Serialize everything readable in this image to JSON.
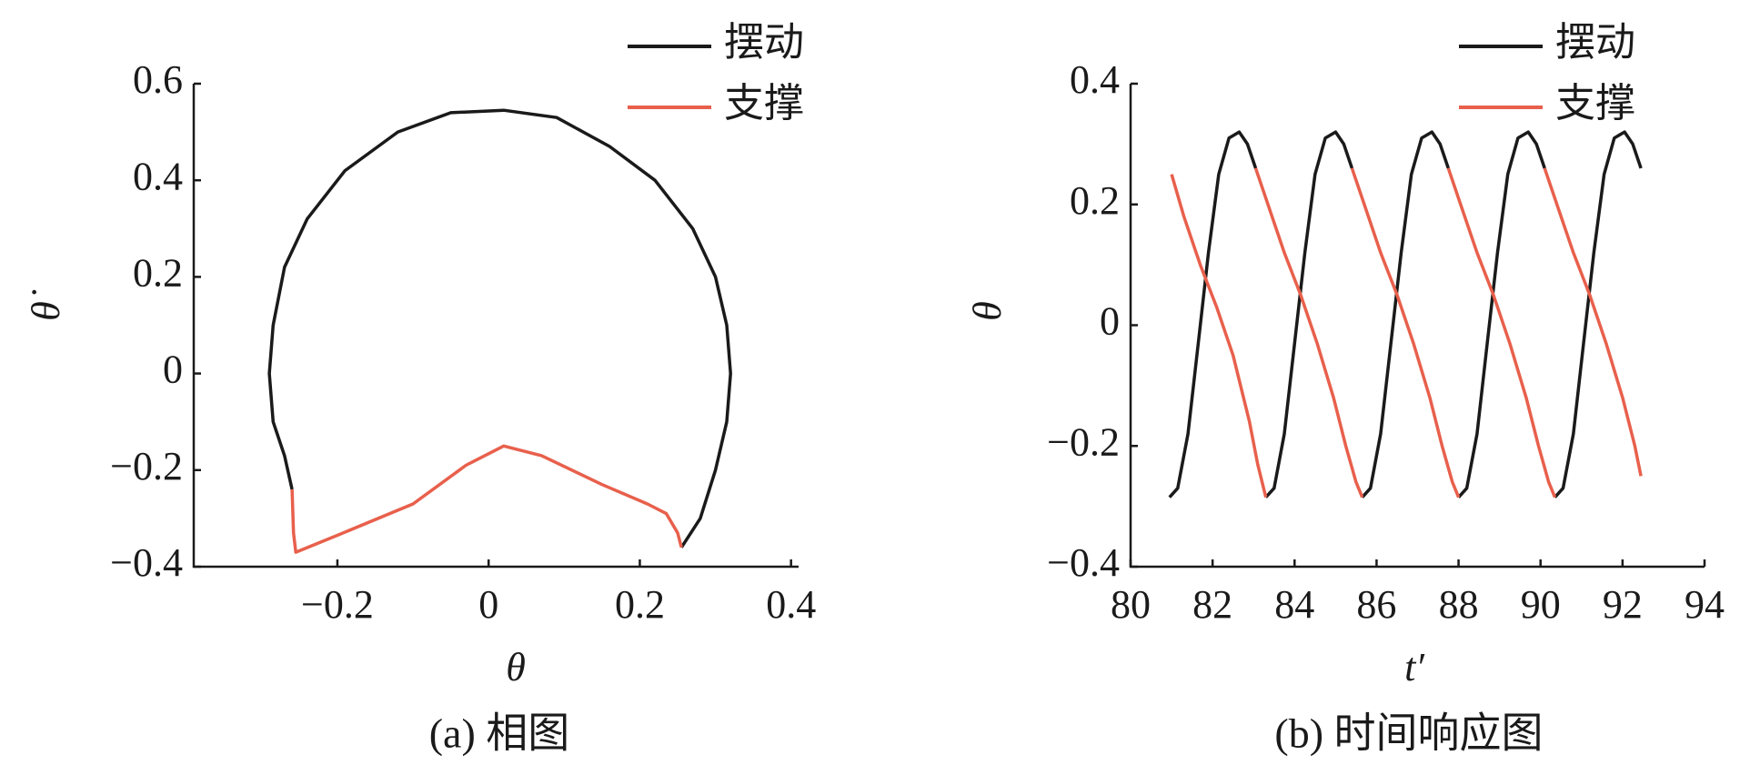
{
  "chart_data": [
    {
      "type": "line",
      "caption": "(a) 相图",
      "xlabel": "θ",
      "ylabel": "θ̇",
      "xlim": [
        -0.39,
        0.41
      ],
      "ylim": [
        -0.4,
        0.6
      ],
      "xticks": [
        {
          "value": -0.2,
          "label": "−0.2"
        },
        0,
        0.2,
        0.4
      ],
      "yticks": [
        0.6,
        0.4,
        0.2,
        0,
        {
          "value": -0.2,
          "label": "−0.2"
        },
        {
          "value": -0.4,
          "label": "−0.4"
        }
      ],
      "series": [
        {
          "name": "摆动",
          "color": "#1a1a1a",
          "x": [
            0.255,
            0.28,
            0.3,
            0.315,
            0.32,
            0.315,
            0.3,
            0.27,
            0.22,
            0.16,
            0.09,
            0.02,
            -0.05,
            -0.12,
            -0.19,
            -0.24,
            -0.27,
            -0.285,
            -0.29,
            -0.285,
            -0.27,
            -0.26
          ],
          "values": [
            -0.36,
            -0.3,
            -0.2,
            -0.1,
            0,
            0.1,
            0.2,
            0.3,
            0.4,
            0.47,
            0.53,
            0.545,
            0.54,
            0.5,
            0.42,
            0.32,
            0.22,
            0.1,
            0,
            -0.1,
            -0.17,
            -0.24
          ]
        },
        {
          "name": "支撑",
          "color": "#e8604c",
          "x": [
            -0.26,
            -0.258,
            -0.255,
            -0.2,
            -0.1,
            -0.03,
            0.02,
            0.07,
            0.15,
            0.21,
            0.235,
            0.25,
            0.255
          ],
          "values": [
            -0.24,
            -0.33,
            -0.37,
            -0.335,
            -0.27,
            -0.19,
            -0.15,
            -0.17,
            -0.23,
            -0.27,
            -0.29,
            -0.33,
            -0.36
          ]
        }
      ]
    },
    {
      "type": "line",
      "caption": "(b) 时间响应图",
      "xlabel": "t′",
      "ylabel": "θ",
      "xlim": [
        80,
        94
      ],
      "ylim": [
        -0.4,
        0.4
      ],
      "xticks": [
        80,
        82,
        84,
        86,
        88,
        90,
        92,
        94
      ],
      "yticks": [
        0.4,
        0.2,
        0,
        {
          "value": -0.2,
          "label": "−0.2"
        },
        {
          "value": -0.4,
          "label": "−0.4"
        }
      ],
      "series": [
        {
          "name": "摆动",
          "color": "#1a1a1a",
          "x": [
            80.95,
            81.15,
            81.4,
            81.65,
            81.9,
            82.15,
            82.4,
            82.65,
            82.85,
            83.05,
            null,
            83.3,
            83.5,
            83.75,
            84.0,
            84.25,
            84.5,
            84.75,
            85.0,
            85.2,
            85.4,
            null,
            85.65,
            85.85,
            86.1,
            86.35,
            86.6,
            86.85,
            87.1,
            87.35,
            87.55,
            87.75,
            null,
            88.0,
            88.2,
            88.45,
            88.7,
            88.95,
            89.2,
            89.45,
            89.7,
            89.9,
            90.1,
            null,
            90.35,
            90.55,
            90.8,
            91.05,
            91.3,
            91.55,
            91.8,
            92.05,
            92.25,
            92.45
          ],
          "values": [
            -0.285,
            -0.27,
            -0.18,
            -0.03,
            0.12,
            0.25,
            0.31,
            0.32,
            0.3,
            0.26,
            null,
            -0.285,
            -0.27,
            -0.18,
            -0.03,
            0.12,
            0.25,
            0.31,
            0.32,
            0.3,
            0.26,
            null,
            -0.285,
            -0.27,
            -0.18,
            -0.03,
            0.12,
            0.25,
            0.31,
            0.32,
            0.3,
            0.26,
            null,
            -0.285,
            -0.27,
            -0.18,
            -0.03,
            0.12,
            0.25,
            0.31,
            0.32,
            0.3,
            0.26,
            null,
            -0.285,
            -0.27,
            -0.18,
            -0.03,
            0.12,
            0.25,
            0.31,
            0.32,
            0.3,
            0.26
          ]
        },
        {
          "name": "支撑",
          "color": "#e8604c",
          "x": [
            81.0,
            81.3,
            81.7,
            82.1,
            82.5,
            82.9,
            83.1,
            83.3,
            null,
            83.05,
            83.35,
            83.75,
            84.15,
            84.55,
            84.95,
            85.25,
            85.5,
            85.65,
            null,
            85.4,
            85.7,
            86.1,
            86.5,
            86.9,
            87.3,
            87.6,
            87.85,
            88.0,
            null,
            87.75,
            88.05,
            88.45,
            88.85,
            89.25,
            89.65,
            89.95,
            90.2,
            90.35,
            null,
            90.1,
            90.4,
            90.8,
            91.2,
            91.6,
            92.0,
            92.3,
            92.45
          ],
          "values": [
            0.25,
            0.18,
            0.1,
            0.03,
            -0.05,
            -0.16,
            -0.23,
            -0.285,
            null,
            0.26,
            0.2,
            0.12,
            0.05,
            -0.03,
            -0.12,
            -0.2,
            -0.26,
            -0.285,
            null,
            0.26,
            0.2,
            0.12,
            0.05,
            -0.03,
            -0.12,
            -0.2,
            -0.26,
            -0.285,
            null,
            0.26,
            0.2,
            0.12,
            0.05,
            -0.03,
            -0.12,
            -0.2,
            -0.26,
            -0.285,
            null,
            0.26,
            0.2,
            0.12,
            0.05,
            -0.03,
            -0.12,
            -0.2,
            -0.25
          ]
        }
      ]
    }
  ]
}
